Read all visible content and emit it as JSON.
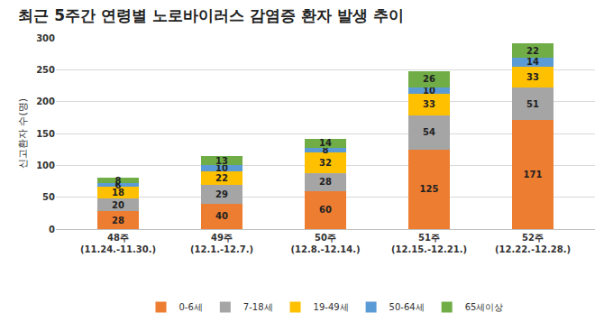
{
  "chart_data": {
    "type": "bar",
    "title": "최근 5주간 연령별 노로바이러스 감염증 환자 발생 추이",
    "y_label": "신고환자 수(명)",
    "categories": [
      "48주\n(11.24.-11.30.)",
      "49주\n(12.1.-12.7.)",
      "50주\n(12.8.-12.14.)",
      "51주\n(12.15.-12.21.)",
      "52주\n(12.22.-12.28.)"
    ],
    "series": [
      {
        "name": "0-6세",
        "color": "#ED7D31",
        "values": [
          28,
          40,
          60,
          125,
          171
        ]
      },
      {
        "name": "7-18세",
        "color": "#A5A5A5",
        "values": [
          20,
          29,
          28,
          54,
          51
        ]
      },
      {
        "name": "19-49세",
        "color": "#FFC000",
        "values": [
          18,
          22,
          32,
          33,
          33
        ]
      },
      {
        "name": "50-64세",
        "color": "#5B9BD5",
        "values": [
          6,
          10,
          8,
          10,
          14
        ]
      },
      {
        "name": "65세이상",
        "color": "#70AD47",
        "values": [
          8,
          13,
          14,
          26,
          22
        ]
      }
    ],
    "ylim": [
      0,
      300
    ],
    "yticks": [
      0,
      50,
      100,
      150,
      200,
      250,
      300
    ],
    "stacked": true,
    "data_labels": true,
    "grid": true,
    "legend": "bottom"
  }
}
